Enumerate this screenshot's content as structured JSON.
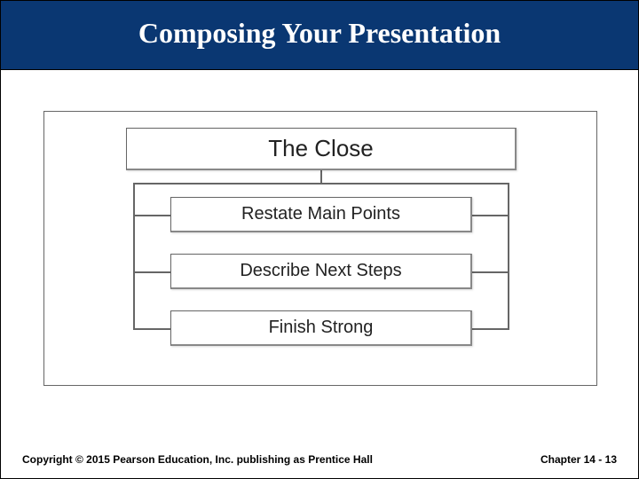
{
  "title": "Composing Your Presentation",
  "diagram": {
    "type": "tree",
    "background_color": "#ffffff",
    "border_color": "#666666",
    "node_bg": "#ffffff",
    "node_border": "#666666",
    "root": {
      "label": "The Close",
      "fontsize": 26
    },
    "children": [
      {
        "label": "Restate Main Points",
        "fontsize": 20
      },
      {
        "label": "Describe Next Steps",
        "fontsize": 20
      },
      {
        "label": "Finish Strong",
        "fontsize": 20
      }
    ]
  },
  "footer": {
    "copyright": "Copyright © 2015 Pearson Education, Inc. publishing as Prentice Hall",
    "page_ref": "Chapter 14 - 13"
  },
  "colors": {
    "title_bg": "#0a3772",
    "title_text": "#ffffff",
    "body_bg": "#ffffff",
    "text": "#222222"
  }
}
